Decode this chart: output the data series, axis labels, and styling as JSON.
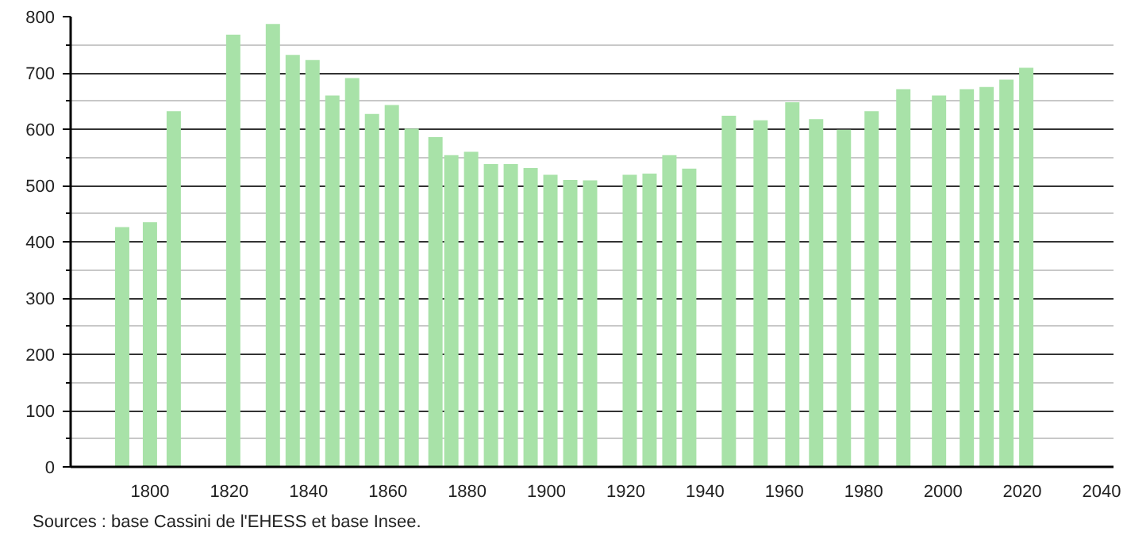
{
  "chart_data": {
    "type": "bar",
    "x": [
      1793,
      1800,
      1806,
      1821,
      1831,
      1836,
      1841,
      1846,
      1851,
      1856,
      1861,
      1866,
      1872,
      1876,
      1881,
      1886,
      1891,
      1896,
      1901,
      1906,
      1911,
      1921,
      1926,
      1931,
      1936,
      1946,
      1954,
      1962,
      1968,
      1975,
      1982,
      1990,
      1999,
      2006,
      2011,
      2016,
      2021
    ],
    "values": [
      426,
      435,
      632,
      768,
      787,
      732,
      723,
      660,
      691,
      627,
      643,
      601,
      586,
      554,
      560,
      538,
      538,
      531,
      519,
      510,
      509,
      519,
      521,
      554,
      530,
      624,
      616,
      648,
      618,
      599,
      632,
      671,
      660,
      671,
      675,
      688,
      709
    ],
    "color": "#a8e2a8",
    "xlim": [
      1780,
      2043
    ],
    "xticks": [
      1800,
      1820,
      1840,
      1860,
      1880,
      1900,
      1920,
      1940,
      1960,
      1980,
      2000,
      2020,
      2040
    ],
    "ylim": [
      0,
      800
    ],
    "yticks": [
      0,
      {
        "value": 50,
        "label": null
      },
      100,
      {
        "value": 150,
        "label": null
      },
      200,
      {
        "value": 250,
        "label": null
      },
      300,
      {
        "value": 350,
        "label": null
      },
      400,
      {
        "value": 450,
        "label": null
      },
      500,
      {
        "value": 550,
        "label": null
      },
      600,
      {
        "value": 650,
        "label": null
      },
      700,
      {
        "value": 750,
        "label": null
      },
      800
    ],
    "grid": "y",
    "annotations": [
      "Sources : base Cassini de l'EHESS et base Insee."
    ]
  }
}
